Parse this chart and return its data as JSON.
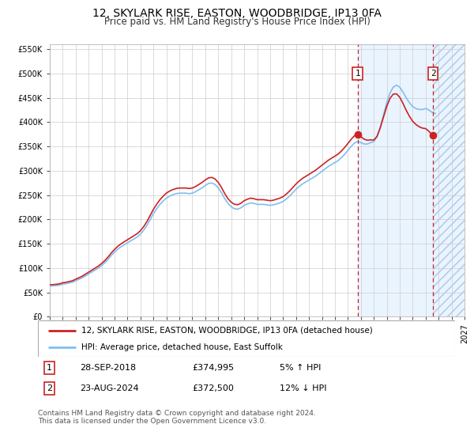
{
  "title": "12, SKYLARK RISE, EASTON, WOODBRIDGE, IP13 0FA",
  "subtitle": "Price paid vs. HM Land Registry's House Price Index (HPI)",
  "legend_line1": "12, SKYLARK RISE, EASTON, WOODBRIDGE, IP13 0FA (detached house)",
  "legend_line2": "HPI: Average price, detached house, East Suffolk",
  "footnote": "Contains HM Land Registry data © Crown copyright and database right 2024.\nThis data is licensed under the Open Government Licence v3.0.",
  "transaction1_label": "1",
  "transaction1_date": "28-SEP-2018",
  "transaction1_price": "£374,995",
  "transaction1_hpi": "5% ↑ HPI",
  "transaction2_label": "2",
  "transaction2_date": "23-AUG-2024",
  "transaction2_price": "£372,500",
  "transaction2_hpi": "12% ↓ HPI",
  "hpi_color": "#7fbfef",
  "price_color": "#cc2222",
  "shade_color": "#ddeeff",
  "grid_color": "#cccccc",
  "background_color": "#ffffff",
  "ylim_min": 0,
  "ylim_max": 560000,
  "yticks": [
    0,
    50000,
    100000,
    150000,
    200000,
    250000,
    300000,
    350000,
    400000,
    450000,
    500000,
    550000
  ],
  "hpi_years": [
    1995.0,
    1995.25,
    1995.5,
    1995.75,
    1996.0,
    1996.25,
    1996.5,
    1996.75,
    1997.0,
    1997.25,
    1997.5,
    1997.75,
    1998.0,
    1998.25,
    1998.5,
    1998.75,
    1999.0,
    1999.25,
    1999.5,
    1999.75,
    2000.0,
    2000.25,
    2000.5,
    2000.75,
    2001.0,
    2001.25,
    2001.5,
    2001.75,
    2002.0,
    2002.25,
    2002.5,
    2002.75,
    2003.0,
    2003.25,
    2003.5,
    2003.75,
    2004.0,
    2004.25,
    2004.5,
    2004.75,
    2005.0,
    2005.25,
    2005.5,
    2005.75,
    2006.0,
    2006.25,
    2006.5,
    2006.75,
    2007.0,
    2007.25,
    2007.5,
    2007.75,
    2008.0,
    2008.25,
    2008.5,
    2008.75,
    2009.0,
    2009.25,
    2009.5,
    2009.75,
    2010.0,
    2010.25,
    2010.5,
    2010.75,
    2011.0,
    2011.25,
    2011.5,
    2011.75,
    2012.0,
    2012.25,
    2012.5,
    2012.75,
    2013.0,
    2013.25,
    2013.5,
    2013.75,
    2014.0,
    2014.25,
    2014.5,
    2014.75,
    2015.0,
    2015.25,
    2015.5,
    2015.75,
    2016.0,
    2016.25,
    2016.5,
    2016.75,
    2017.0,
    2017.25,
    2017.5,
    2017.75,
    2018.0,
    2018.25,
    2018.5,
    2018.75,
    2019.0,
    2019.25,
    2019.5,
    2019.75,
    2020.0,
    2020.25,
    2020.5,
    2020.75,
    2021.0,
    2021.25,
    2021.5,
    2021.75,
    2022.0,
    2022.25,
    2022.5,
    2022.75,
    2023.0,
    2023.25,
    2023.5,
    2023.75,
    2024.0,
    2024.25,
    2024.5,
    2024.75
  ],
  "hpi_values": [
    63000,
    63500,
    64000,
    65000,
    67000,
    68000,
    69500,
    71000,
    74000,
    77000,
    80000,
    84000,
    88000,
    92000,
    96000,
    100000,
    105000,
    111000,
    118000,
    126000,
    133000,
    139000,
    144000,
    148000,
    152000,
    156000,
    160000,
    164000,
    170000,
    178000,
    188000,
    200000,
    212000,
    222000,
    231000,
    238000,
    244000,
    248000,
    251000,
    253000,
    254000,
    254000,
    254000,
    253000,
    254000,
    257000,
    261000,
    265000,
    270000,
    274000,
    275000,
    272000,
    265000,
    255000,
    243000,
    233000,
    226000,
    222000,
    221000,
    224000,
    229000,
    232000,
    234000,
    233000,
    231000,
    231000,
    231000,
    230000,
    229000,
    230000,
    232000,
    234000,
    237000,
    242000,
    248000,
    255000,
    262000,
    268000,
    273000,
    277000,
    281000,
    285000,
    289000,
    294000,
    299000,
    304000,
    309000,
    313000,
    317000,
    321000,
    327000,
    334000,
    342000,
    350000,
    357000,
    360000,
    358000,
    355000,
    355000,
    358000,
    360000,
    370000,
    390000,
    415000,
    440000,
    460000,
    472000,
    476000,
    472000,
    462000,
    450000,
    440000,
    432000,
    428000,
    426000,
    426000,
    428000,
    425000,
    420000,
    418000
  ],
  "transaction1_x": 2018.75,
  "transaction1_y": 374995,
  "transaction2_x": 2024.583,
  "transaction2_y": 372500,
  "xlim_min": 1995,
  "xlim_max": 2027.0
}
